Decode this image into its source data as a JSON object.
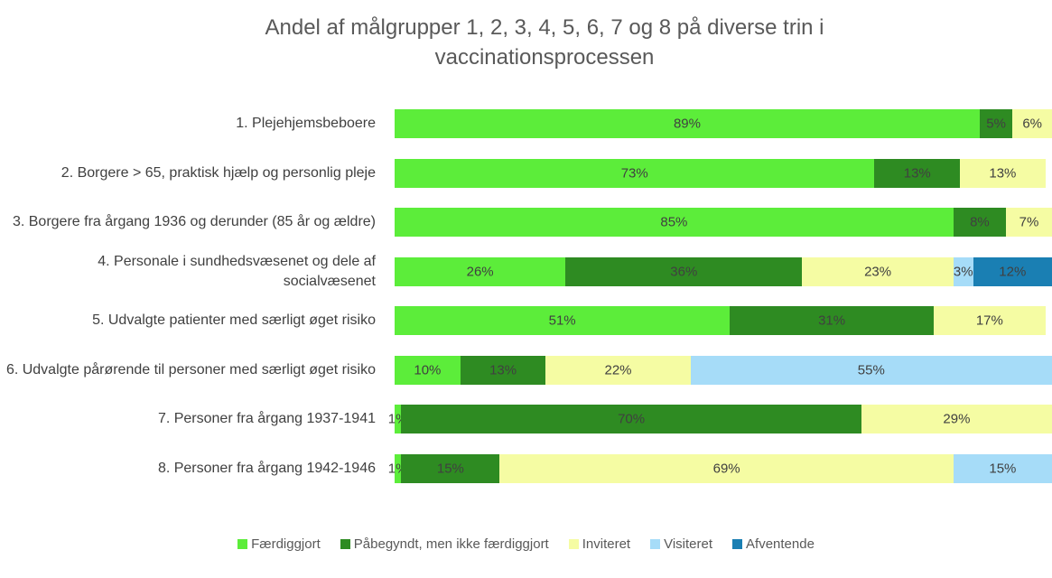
{
  "chart_data": {
    "type": "stacked-bar-horizontal",
    "title": "Andel af målgrupper 1, 2, 3, 4, 5, 6, 7 og 8 på diverse trin i vaccinationsprocessen",
    "categories": [
      "1. Plejehjemsbeboere",
      "2. Borgere > 65, praktisk hjælp og personlig pleje",
      "3. Borgere fra årgang 1936 og derunder (85 år og ældre)",
      "4. Personale i sundhedsvæsenet og dele af socialvæsenet",
      "5. Udvalgte patienter med særligt øget risiko",
      "6. Udvalgte pårørende til personer med særligt øget risiko",
      "7. Personer fra årgang 1937-1941",
      "8. Personer fra årgang 1942-1946"
    ],
    "xlim": [
      0,
      100
    ],
    "series": [
      {
        "name": "Færdiggjort",
        "color": "#5ced3a",
        "values": [
          89,
          73,
          85,
          26,
          51,
          10,
          1,
          1
        ],
        "value_labels": [
          "89%",
          "73%",
          "85%",
          "26%",
          "51%",
          "10%",
          "1%",
          "1%"
        ]
      },
      {
        "name": "Påbegyndt, men ikke færdiggjort",
        "color": "#2e8b22",
        "values": [
          5,
          13,
          8,
          36,
          31,
          13,
          70,
          15
        ],
        "value_labels": [
          "5%",
          "13%",
          "8%",
          "36%",
          "31%",
          "13%",
          "70%",
          "15%"
        ]
      },
      {
        "name": "Inviteret",
        "color": "#f5fca3",
        "values": [
          6,
          13,
          7,
          23,
          17,
          22,
          29,
          69
        ],
        "value_labels": [
          "6%",
          "13%",
          "7%",
          "23%",
          "17%",
          "22%",
          "29%",
          "69%"
        ]
      },
      {
        "name": "Visiteret",
        "color": "#a6dcf8",
        "values": [
          null,
          null,
          null,
          3,
          null,
          55,
          null,
          15
        ],
        "value_labels": [
          null,
          null,
          null,
          "3%",
          null,
          "55%",
          null,
          "15%"
        ]
      },
      {
        "name": "Afventende",
        "color": "#1a7fb3",
        "values": [
          null,
          null,
          null,
          12,
          null,
          null,
          null,
          null
        ],
        "value_labels": [
          null,
          null,
          null,
          "12%",
          null,
          null,
          null,
          null
        ]
      }
    ]
  }
}
